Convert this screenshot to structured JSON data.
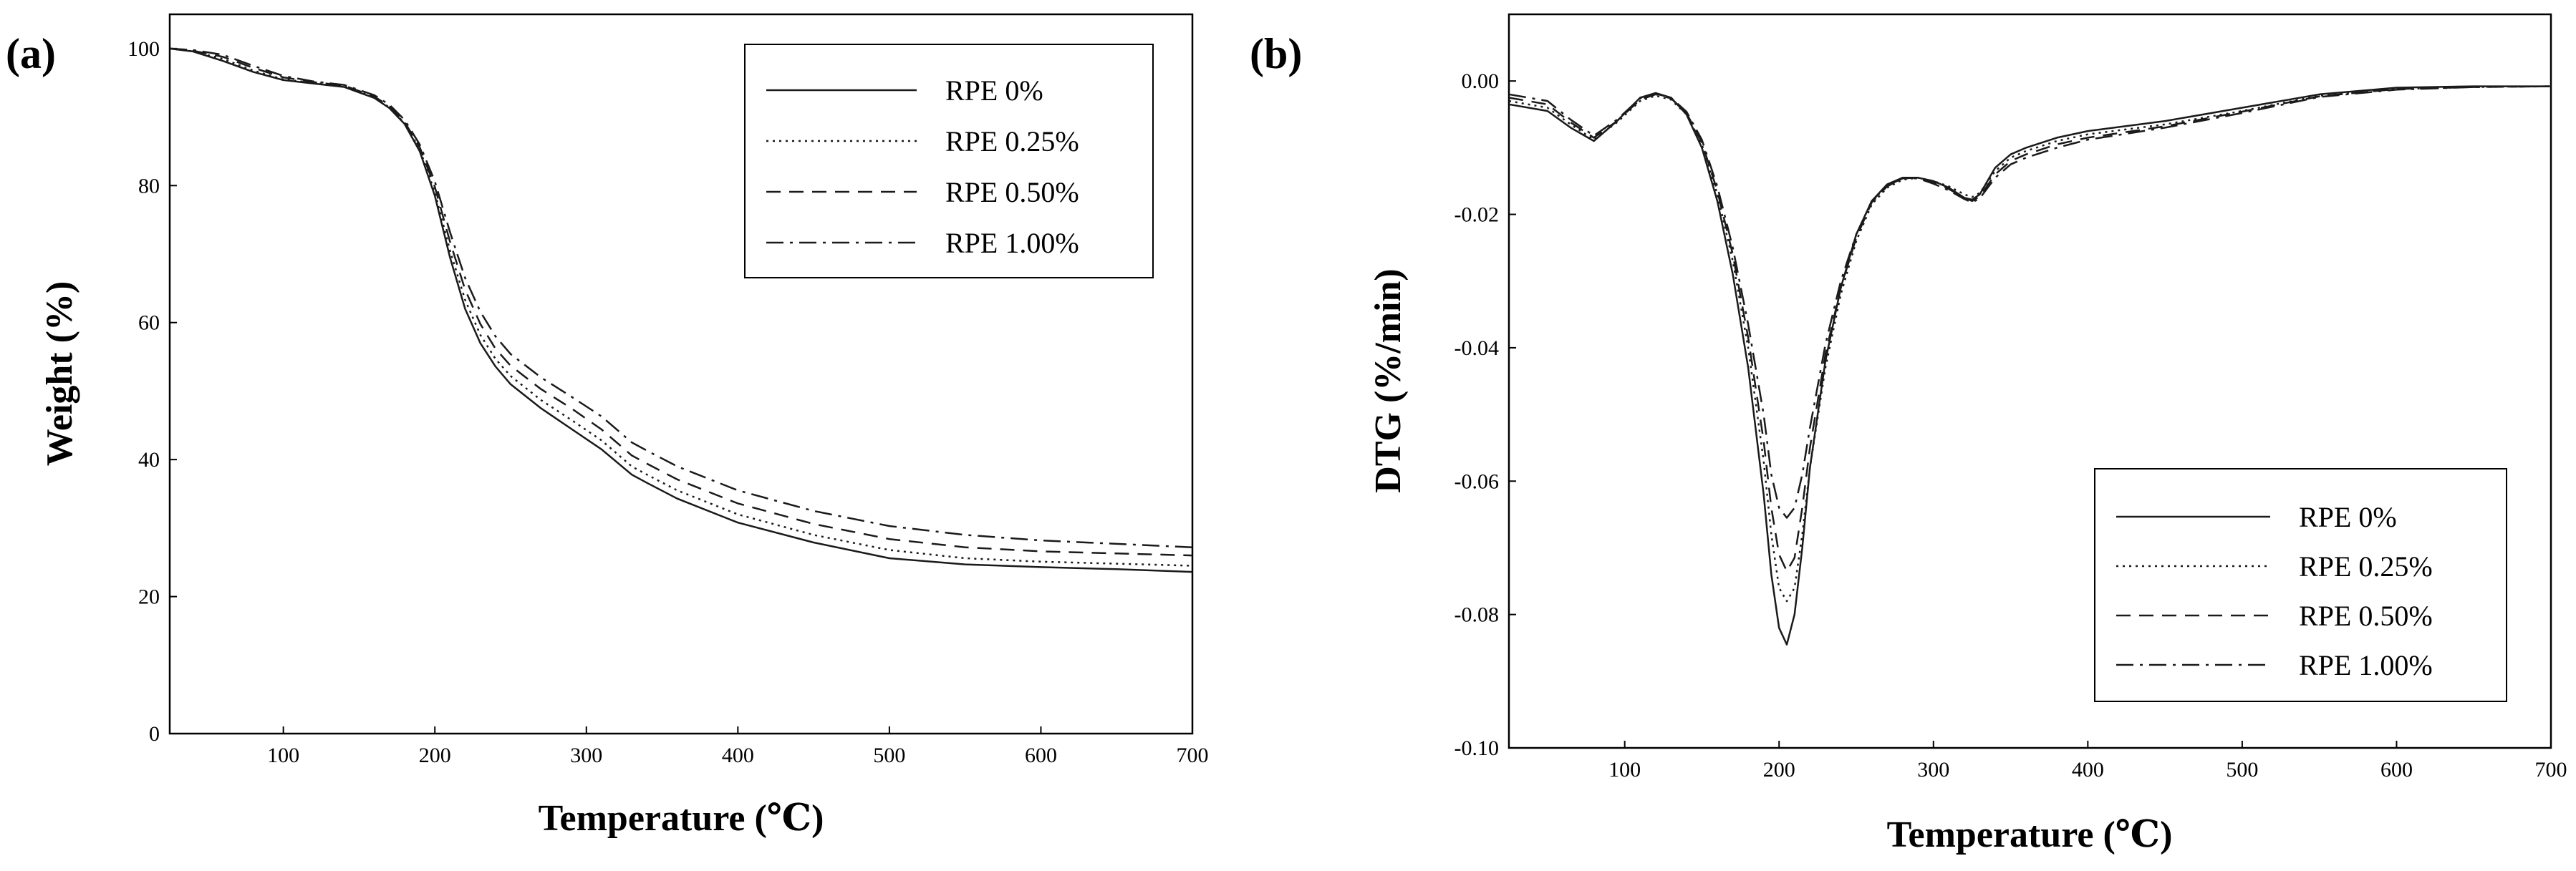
{
  "figure": {
    "background": "#ffffff",
    "line_color": "#1a1a1a"
  },
  "chart_data": [
    {
      "type": "line",
      "panel_label": "(a)",
      "title": "",
      "xlabel": "Temperature (℃)",
      "ylabel": "Weight (%)",
      "xlim": [
        25,
        700
      ],
      "ylim": [
        0,
        105
      ],
      "xticks": [
        100,
        200,
        300,
        400,
        500,
        600,
        700
      ],
      "yticks": [
        0,
        20,
        40,
        60,
        80,
        100
      ],
      "grid": false,
      "legend_position": "top-right",
      "series": [
        {
          "name": "RPE 0%",
          "dash": "solid",
          "x": [
            25,
            40,
            60,
            80,
            100,
            120,
            140,
            160,
            170,
            180,
            190,
            200,
            210,
            220,
            230,
            240,
            250,
            270,
            290,
            310,
            330,
            340,
            360,
            400,
            450,
            500,
            550,
            600,
            650,
            700
          ],
          "y": [
            100,
            99.6,
            98.2,
            96.6,
            95.4,
            94.9,
            94.4,
            92.8,
            91.3,
            89.0,
            85.0,
            78.5,
            69.5,
            62.0,
            57.0,
            53.6,
            51.0,
            47.5,
            44.5,
            41.5,
            37.8,
            36.6,
            34.3,
            30.8,
            27.9,
            25.6,
            24.7,
            24.3,
            24.0,
            23.6
          ]
        },
        {
          "name": "RPE 0.25%",
          "dash": "dotted",
          "x": [
            25,
            40,
            60,
            80,
            100,
            120,
            140,
            160,
            170,
            180,
            190,
            200,
            210,
            220,
            230,
            240,
            250,
            270,
            290,
            310,
            330,
            340,
            360,
            400,
            450,
            500,
            550,
            600,
            650,
            700
          ],
          "y": [
            100,
            99.6,
            98.5,
            96.8,
            95.5,
            95.0,
            94.5,
            92.9,
            91.4,
            89.1,
            85.3,
            79.0,
            70.5,
            63.3,
            58.2,
            54.7,
            52.2,
            48.7,
            45.8,
            42.8,
            39.0,
            37.8,
            35.5,
            32.0,
            29.0,
            26.8,
            25.6,
            25.1,
            24.8,
            24.5
          ]
        },
        {
          "name": "RPE 0.50%",
          "dash": "dashed",
          "x": [
            25,
            40,
            60,
            80,
            100,
            120,
            140,
            160,
            170,
            180,
            190,
            200,
            210,
            220,
            230,
            240,
            250,
            270,
            290,
            310,
            330,
            340,
            360,
            400,
            450,
            500,
            550,
            600,
            650,
            700
          ],
          "y": [
            100,
            99.7,
            98.8,
            97.2,
            95.8,
            95.1,
            94.6,
            93.0,
            91.6,
            89.3,
            85.6,
            79.8,
            71.8,
            64.8,
            59.8,
            56.2,
            53.7,
            50.3,
            47.5,
            44.4,
            40.6,
            39.4,
            37.1,
            33.6,
            30.6,
            28.4,
            27.2,
            26.6,
            26.3,
            26.0
          ]
        },
        {
          "name": "RPE 1.00%",
          "dash": "dash-dot",
          "x": [
            25,
            40,
            60,
            80,
            100,
            120,
            140,
            160,
            170,
            180,
            190,
            200,
            210,
            220,
            230,
            240,
            250,
            270,
            290,
            310,
            330,
            340,
            360,
            400,
            450,
            500,
            550,
            600,
            650,
            700
          ],
          "y": [
            100,
            99.8,
            99.1,
            97.5,
            96.0,
            95.2,
            94.7,
            93.2,
            91.8,
            89.6,
            86.0,
            80.6,
            73.2,
            66.5,
            61.6,
            58.0,
            55.4,
            52.0,
            49.2,
            46.3,
            42.5,
            41.3,
            39.0,
            35.5,
            32.5,
            30.3,
            29.0,
            28.2,
            27.7,
            27.2
          ]
        }
      ]
    },
    {
      "type": "line",
      "panel_label": "(b)",
      "title": "",
      "xlabel": "Temperature (℃)",
      "ylabel": "DTG (%/min)",
      "xlim": [
        25,
        700
      ],
      "ylim": [
        -0.1,
        0.01
      ],
      "xticks": [
        100,
        200,
        300,
        400,
        500,
        600,
        700
      ],
      "yticks": [
        0.0,
        -0.02,
        -0.04,
        -0.06,
        -0.08,
        -0.1
      ],
      "ytick_labels": [
        "0.00",
        "-0.02",
        "-0.04",
        "-0.06",
        "-0.08",
        "-0.10"
      ],
      "grid": false,
      "legend_position": "bottom-right",
      "series": [
        {
          "name": "RPE 0%",
          "dash": "solid",
          "x": [
            25,
            50,
            65,
            80,
            95,
            110,
            120,
            130,
            140,
            150,
            160,
            170,
            180,
            190,
            195,
            200,
            205,
            210,
            215,
            220,
            230,
            240,
            250,
            260,
            270,
            280,
            290,
            300,
            310,
            320,
            325,
            330,
            340,
            350,
            360,
            380,
            400,
            450,
            500,
            550,
            600,
            650,
            700
          ],
          "y": [
            -0.0035,
            -0.0045,
            -0.007,
            -0.009,
            -0.006,
            -0.0025,
            -0.0018,
            -0.0025,
            -0.005,
            -0.01,
            -0.018,
            -0.029,
            -0.043,
            -0.062,
            -0.074,
            -0.082,
            -0.0845,
            -0.08,
            -0.07,
            -0.058,
            -0.042,
            -0.031,
            -0.023,
            -0.018,
            -0.0155,
            -0.0145,
            -0.0145,
            -0.015,
            -0.016,
            -0.0175,
            -0.0178,
            -0.017,
            -0.013,
            -0.011,
            -0.01,
            -0.0085,
            -0.0075,
            -0.006,
            -0.004,
            -0.002,
            -0.001,
            -0.0008,
            -0.0008
          ]
        },
        {
          "name": "RPE 0.25%",
          "dash": "dotted",
          "x": [
            25,
            50,
            65,
            80,
            95,
            110,
            120,
            130,
            140,
            150,
            160,
            170,
            180,
            190,
            195,
            200,
            205,
            210,
            215,
            220,
            230,
            240,
            250,
            260,
            270,
            280,
            290,
            300,
            310,
            320,
            325,
            330,
            340,
            350,
            360,
            380,
            400,
            450,
            500,
            550,
            600,
            650,
            700
          ],
          "y": [
            -0.003,
            -0.004,
            -0.0065,
            -0.0088,
            -0.0062,
            -0.003,
            -0.0022,
            -0.0028,
            -0.005,
            -0.0095,
            -0.017,
            -0.027,
            -0.04,
            -0.057,
            -0.068,
            -0.076,
            -0.078,
            -0.076,
            -0.068,
            -0.058,
            -0.043,
            -0.032,
            -0.024,
            -0.0185,
            -0.016,
            -0.0148,
            -0.0145,
            -0.015,
            -0.0158,
            -0.017,
            -0.0174,
            -0.0168,
            -0.0135,
            -0.0115,
            -0.0105,
            -0.009,
            -0.008,
            -0.0065,
            -0.0045,
            -0.0022,
            -0.0012,
            -0.0009,
            -0.0008
          ]
        },
        {
          "name": "RPE 0.50%",
          "dash": "dashed",
          "x": [
            25,
            50,
            65,
            80,
            95,
            110,
            120,
            130,
            140,
            150,
            160,
            170,
            180,
            190,
            195,
            200,
            205,
            210,
            215,
            220,
            230,
            240,
            250,
            260,
            270,
            280,
            290,
            300,
            310,
            320,
            325,
            330,
            340,
            350,
            360,
            380,
            400,
            450,
            500,
            550,
            600,
            650,
            700
          ],
          "y": [
            -0.0025,
            -0.0035,
            -0.0062,
            -0.0085,
            -0.006,
            -0.0028,
            -0.002,
            -0.0026,
            -0.0048,
            -0.0092,
            -0.0165,
            -0.026,
            -0.0385,
            -0.054,
            -0.064,
            -0.071,
            -0.0735,
            -0.0715,
            -0.064,
            -0.055,
            -0.041,
            -0.031,
            -0.0235,
            -0.0182,
            -0.0158,
            -0.0146,
            -0.0145,
            -0.0152,
            -0.0162,
            -0.0175,
            -0.018,
            -0.0173,
            -0.014,
            -0.012,
            -0.011,
            -0.0095,
            -0.0085,
            -0.0068,
            -0.0046,
            -0.0023,
            -0.0012,
            -0.0009,
            -0.0008
          ]
        },
        {
          "name": "RPE 1.00%",
          "dash": "dash-dot",
          "x": [
            25,
            50,
            65,
            80,
            95,
            110,
            120,
            130,
            140,
            150,
            160,
            170,
            180,
            190,
            195,
            200,
            205,
            210,
            215,
            220,
            230,
            240,
            250,
            260,
            270,
            280,
            290,
            300,
            310,
            320,
            325,
            330,
            340,
            350,
            360,
            380,
            400,
            450,
            500,
            550,
            600,
            650,
            700
          ],
          "y": [
            -0.002,
            -0.003,
            -0.0058,
            -0.0082,
            -0.0058,
            -0.0026,
            -0.0019,
            -0.0025,
            -0.0046,
            -0.0088,
            -0.0158,
            -0.025,
            -0.0365,
            -0.05,
            -0.059,
            -0.064,
            -0.0655,
            -0.064,
            -0.059,
            -0.052,
            -0.0395,
            -0.03,
            -0.023,
            -0.018,
            -0.0157,
            -0.0146,
            -0.0146,
            -0.0154,
            -0.0164,
            -0.0177,
            -0.0182,
            -0.0176,
            -0.0145,
            -0.0125,
            -0.0115,
            -0.01,
            -0.0088,
            -0.007,
            -0.0048,
            -0.0024,
            -0.0013,
            -0.0009,
            -0.0008
          ]
        }
      ]
    }
  ]
}
